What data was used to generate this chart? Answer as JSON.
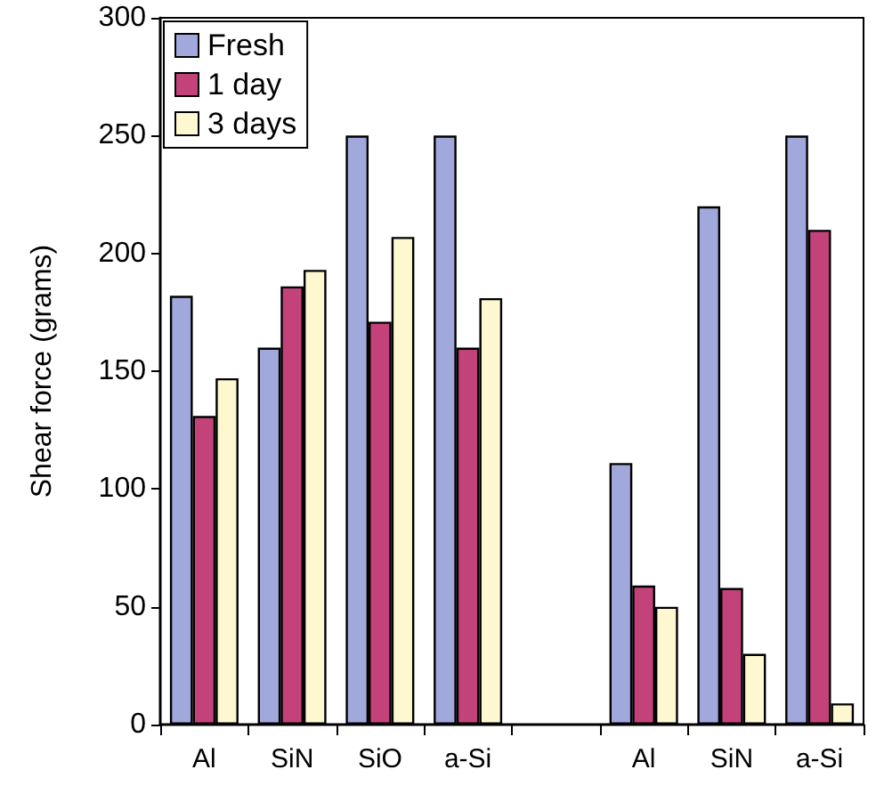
{
  "chart_data": {
    "type": "bar",
    "ylabel": "Shear force (grams)",
    "categories": [
      "Al",
      "SiN",
      "SiO",
      "a-Si",
      null,
      "Al",
      "SiN",
      "a-Si"
    ],
    "series": [
      {
        "name": "Fresh",
        "color": "#a0a8dc",
        "values": [
          182,
          160,
          250,
          250,
          null,
          111,
          220,
          250
        ]
      },
      {
        "name": "1 day",
        "color": "#c4427a",
        "values": [
          131,
          186,
          171,
          160,
          null,
          59,
          58,
          210
        ]
      },
      {
        "name": "3 days",
        "color": "#fdf8d0",
        "values": [
          147,
          193,
          207,
          181,
          null,
          50,
          30,
          9
        ]
      }
    ],
    "ylim": [
      0,
      300
    ],
    "yticks": [
      0,
      50,
      100,
      150,
      200,
      250,
      300
    ],
    "grid": false,
    "legend": "top left"
  }
}
